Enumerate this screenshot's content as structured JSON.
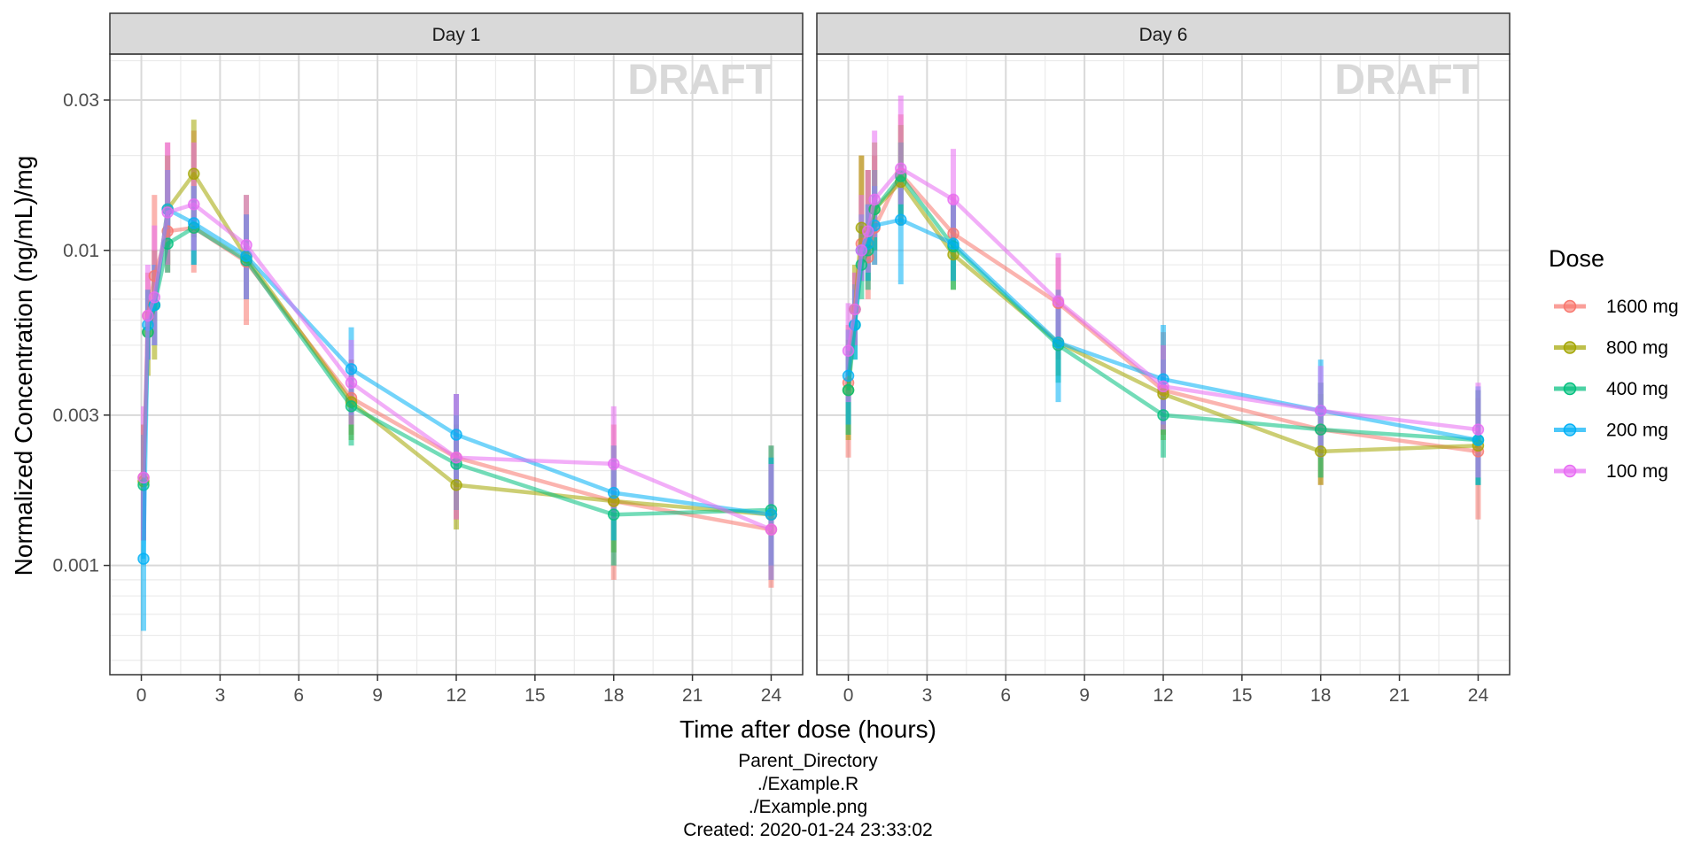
{
  "chart_data": {
    "type": "line",
    "ylabel": "Normalized Concentration (ng/mL)/mg",
    "xlabel": "Time after dose (hours)",
    "y_scale": "log10",
    "ylim": [
      0.00045,
      0.042
    ],
    "xlim": [
      -1.2,
      25.2
    ],
    "x_ticks": [
      0,
      3,
      6,
      9,
      12,
      15,
      18,
      21,
      24
    ],
    "y_ticks": [
      0.001,
      0.003,
      0.01,
      0.03
    ],
    "y_tick_labels": [
      "0.001",
      "0.003",
      "0.01",
      "0.03"
    ],
    "grid": true,
    "watermark": "DRAFT",
    "legend": {
      "title": "Dose",
      "position": "right"
    },
    "colors": {
      "1600 mg": "#F8766D",
      "800 mg": "#A3A500",
      "400 mg": "#00BF7D",
      "200 mg": "#00B0F6",
      "100 mg": "#E76BF3"
    },
    "footnote": [
      "Parent_Directory",
      "./Example.R",
      "./Example.png",
      "Created: 2020-01-24 23:33:02"
    ],
    "panels": [
      {
        "title": "Day 1",
        "series": [
          {
            "name": "1600 mg",
            "x": [
              0.083,
              0.25,
              0.5,
              1,
              2,
              4,
              8,
              12,
              18,
              24
            ],
            "y": [
              0.0019,
              0.0062,
              0.0083,
              0.0115,
              0.0118,
              0.0092,
              0.0034,
              0.0022,
              0.0016,
              0.0013
            ],
            "lo": [
              0.0013,
              0.0045,
              0.006,
              0.0085,
              0.0085,
              0.0058,
              0.0026,
              0.0014,
              0.0009,
              0.00085
            ],
            "hi": [
              0.0028,
              0.0085,
              0.015,
              0.022,
              0.024,
              0.013,
              0.0045,
              0.0035,
              0.0028,
              0.0024
            ]
          },
          {
            "name": "800 mg",
            "x": [
              0.083,
              0.25,
              0.5,
              1,
              2,
              4,
              8,
              12,
              18,
              24
            ],
            "y": [
              0.00185,
              0.0055,
              0.0067,
              0.0135,
              0.0175,
              0.0095,
              0.0033,
              0.0018,
              0.0016,
              0.00145
            ],
            "lo": [
              0.0012,
              0.004,
              0.0045,
              0.009,
              0.011,
              0.007,
              0.0025,
              0.0013,
              0.0011,
              0.001
            ],
            "hi": [
              0.0028,
              0.0075,
              0.01,
              0.02,
              0.026,
              0.015,
              0.0045,
              0.0028,
              0.0024,
              0.0022
            ]
          },
          {
            "name": "400 mg",
            "x": [
              0.083,
              0.25,
              0.5,
              1,
              2,
              4,
              8,
              12,
              18,
              24
            ],
            "y": [
              0.0018,
              0.0055,
              0.0067,
              0.0105,
              0.0118,
              0.0093,
              0.0032,
              0.0021,
              0.00145,
              0.0015
            ],
            "lo": [
              0.0012,
              0.0045,
              0.005,
              0.0085,
              0.009,
              0.007,
              0.0024,
              0.0015,
              0.001,
              0.0009
            ],
            "hi": [
              0.0026,
              0.0075,
              0.009,
              0.014,
              0.016,
              0.013,
              0.0042,
              0.003,
              0.002,
              0.0024
            ]
          },
          {
            "name": "200 mg",
            "x": [
              0.083,
              0.25,
              0.5,
              1,
              2,
              4,
              8,
              12,
              18,
              24
            ],
            "y": [
              0.00105,
              0.0058,
              0.0067,
              0.0135,
              0.0122,
              0.0096,
              0.0042,
              0.0026,
              0.0017,
              0.00145
            ],
            "lo": [
              0.00062,
              0.0045,
              0.005,
              0.011,
              0.009,
              0.007,
              0.003,
              0.0018,
              0.0012,
              0.001
            ],
            "hi": [
              0.0018,
              0.0075,
              0.009,
              0.018,
              0.016,
              0.013,
              0.0057,
              0.0035,
              0.0024,
              0.0022
            ]
          },
          {
            "name": "100 mg",
            "x": [
              0.083,
              0.25,
              0.5,
              1,
              2,
              4,
              8,
              12,
              18,
              24
            ],
            "y": [
              0.0019,
              0.0062,
              0.0071,
              0.0132,
              0.014,
              0.0104,
              0.0038,
              0.0022,
              0.0021,
              0.0013
            ],
            "lo": [
              0.0012,
              0.0045,
              0.005,
              0.009,
              0.01,
              0.007,
              0.0028,
              0.0014,
              0.0014,
              0.0009
            ],
            "hi": [
              0.0032,
              0.009,
              0.012,
              0.022,
              0.022,
              0.015,
              0.0052,
              0.0035,
              0.0032,
              0.0021
            ]
          }
        ]
      },
      {
        "title": "Day 6",
        "series": [
          {
            "name": "1600 mg",
            "x": [
              0,
              0.25,
              0.5,
              0.75,
              1,
              2,
              4,
              8,
              12,
              18,
              24
            ],
            "y": [
              0.0038,
              0.0065,
              0.0105,
              0.0095,
              0.0118,
              0.0175,
              0.0113,
              0.0068,
              0.0036,
              0.0027,
              0.0023
            ],
            "lo": [
              0.0022,
              0.005,
              0.008,
              0.007,
              0.009,
              0.012,
              0.008,
              0.0045,
              0.0026,
              0.0018,
              0.0014
            ],
            "hi": [
              0.0058,
              0.0085,
              0.02,
              0.018,
              0.02,
              0.027,
              0.015,
              0.0095,
              0.0055,
              0.0038,
              0.0034
            ]
          },
          {
            "name": "800 mg",
            "x": [
              0,
              0.25,
              0.5,
              0.75,
              1,
              2,
              4,
              8,
              12,
              18,
              24
            ],
            "y": [
              0.0036,
              0.0065,
              0.0118,
              0.0105,
              0.0135,
              0.0165,
              0.0097,
              0.0051,
              0.0035,
              0.0023,
              0.0024
            ],
            "lo": [
              0.0025,
              0.005,
              0.009,
              0.008,
              0.01,
              0.012,
              0.0075,
              0.004,
              0.0025,
              0.0018,
              0.0018
            ],
            "hi": [
              0.0052,
              0.009,
              0.02,
              0.018,
              0.022,
              0.025,
              0.014,
              0.0075,
              0.005,
              0.0035,
              0.0036
            ]
          },
          {
            "name": "400 mg",
            "x": [
              0,
              0.25,
              0.5,
              0.75,
              1,
              2,
              4,
              8,
              12,
              18,
              24
            ],
            "y": [
              0.0036,
              0.0058,
              0.009,
              0.01,
              0.0135,
              0.0172,
              0.0103,
              0.005,
              0.003,
              0.0027,
              0.0025
            ],
            "lo": [
              0.0026,
              0.0045,
              0.007,
              0.0075,
              0.01,
              0.013,
              0.0075,
              0.0038,
              0.0022,
              0.0019,
              0.0018
            ],
            "hi": [
              0.005,
              0.0078,
              0.012,
              0.014,
              0.018,
              0.022,
              0.014,
              0.007,
              0.0045,
              0.0038,
              0.0036
            ]
          },
          {
            "name": "200 mg",
            "x": [
              0,
              0.25,
              0.5,
              0.75,
              1,
              2,
              4,
              8,
              12,
              18,
              24
            ],
            "y": [
              0.004,
              0.0058,
              0.01,
              0.0105,
              0.012,
              0.0125,
              0.0105,
              0.0051,
              0.0039,
              0.0031,
              0.0025
            ],
            "lo": [
              0.0028,
              0.0045,
              0.008,
              0.008,
              0.009,
              0.0078,
              0.008,
              0.0033,
              0.0028,
              0.0022,
              0.0018
            ],
            "hi": [
              0.0056,
              0.0075,
              0.013,
              0.014,
              0.016,
              0.018,
              0.014,
              0.0075,
              0.0058,
              0.0045,
              0.0037
            ]
          },
          {
            "name": "100 mg",
            "x": [
              0,
              0.25,
              0.5,
              0.75,
              1,
              2,
              4,
              8,
              12,
              18,
              24
            ],
            "y": [
              0.0048,
              0.0065,
              0.01,
              0.0115,
              0.0145,
              0.0182,
              0.0145,
              0.0069,
              0.0037,
              0.0031,
              0.0027
            ],
            "lo": [
              0.0033,
              0.005,
              0.008,
              0.0085,
              0.011,
              0.014,
              0.011,
              0.0048,
              0.0027,
              0.0022,
              0.0019
            ],
            "hi": [
              0.0068,
              0.0085,
              0.015,
              0.018,
              0.024,
              0.031,
              0.021,
              0.0098,
              0.005,
              0.0043,
              0.0038
            ]
          }
        ]
      }
    ]
  }
}
